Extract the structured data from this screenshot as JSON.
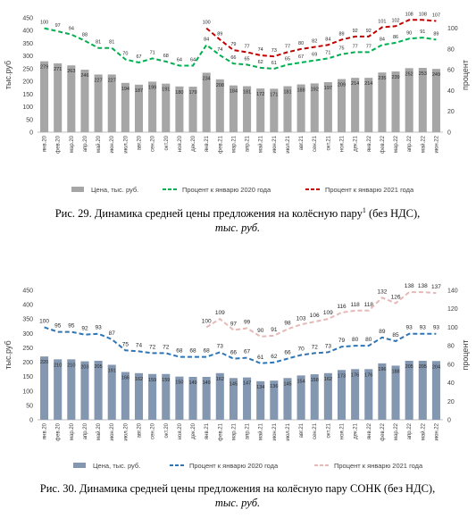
{
  "chart_data": [
    {
      "type": "bar",
      "categories": [
        "янв.20",
        "фев.20",
        "мар.20",
        "апр.20",
        "май.20",
        "июн.20",
        "июл.20",
        "авг.20",
        "сен.20",
        "окт.20",
        "ноя.20",
        "дек.20",
        "янв.21",
        "фев.21",
        "мар.21",
        "апр.21",
        "май.21",
        "июн.21",
        "июл.21",
        "авг.21",
        "сен.21",
        "окт.21",
        "ноя.21",
        "дек.21",
        "янв.22",
        "фев.22",
        "мар.22",
        "апр.22",
        "май.22",
        "июн.22"
      ],
      "ylabel": "тыс.руб",
      "y2label": "процент",
      "ylim": [
        0,
        450
      ],
      "yticks": [
        0,
        50,
        100,
        150,
        200,
        250,
        300,
        350,
        400,
        450
      ],
      "y2lim": [
        0,
        110
      ],
      "y2ticks": [
        0,
        20,
        40,
        60,
        80,
        100
      ],
      "series": [
        {
          "name": "Цена, тыс. руб.",
          "type": "bar",
          "color": "#a6a6a6",
          "values": [
            279,
            271,
            263,
            246,
            227,
            227,
            194,
            187,
            199,
            191,
            180,
            179,
            234,
            208,
            184,
            181,
            172,
            171,
            181,
            188,
            192,
            197,
            209,
            214,
            214,
            235,
            239,
            252,
            253,
            249
          ]
        },
        {
          "name": "Процент к январю 2020 года",
          "type": "line",
          "axis": "y2",
          "color": "#00b050",
          "values": [
            100,
            97,
            94,
            88,
            81,
            81,
            70,
            67,
            71,
            68,
            64,
            64,
            84,
            74,
            66,
            65,
            62,
            61,
            65,
            67,
            69,
            71,
            75,
            77,
            77,
            84,
            86,
            90,
            91,
            89
          ]
        },
        {
          "name": "Процент к январю 2021 года",
          "type": "line",
          "axis": "y2",
          "color": "#c00000",
          "values": [
            null,
            null,
            null,
            null,
            null,
            null,
            null,
            null,
            null,
            null,
            null,
            null,
            100,
            89,
            79,
            77,
            74,
            73,
            77,
            80,
            82,
            84,
            89,
            92,
            92,
            101,
            102,
            108,
            108,
            107
          ]
        }
      ],
      "caption": {
        "text": "Рис. 29. Динамика средней цены предложения на колёсную пару",
        "sup": "1",
        "tail": " (без НДС),",
        "unit": "тыс. руб."
      }
    },
    {
      "type": "bar",
      "categories": [
        "янв.20",
        "фев.20",
        "мар.20",
        "апр.20",
        "май.20",
        "июн.20",
        "июл.20",
        "авг.20",
        "сен.20",
        "окт.20",
        "ноя.20",
        "дек.20",
        "янв.21",
        "фев.21",
        "мар.21",
        "апр.21",
        "май.21",
        "июн.21",
        "июл.21",
        "авг.21",
        "сен.21",
        "окт.21",
        "ноя.21",
        "дек.21",
        "янв.22",
        "фев.22",
        "мар.22",
        "апр.22",
        "май.22",
        "июн.22"
      ],
      "ylabel": "тыс.руб",
      "y2label": "процент",
      "ylim": [
        0,
        450
      ],
      "yticks": [
        0,
        50,
        100,
        150,
        200,
        250,
        300,
        350,
        400,
        450
      ],
      "y2lim": [
        0,
        140
      ],
      "y2ticks": [
        0,
        20,
        40,
        60,
        80,
        100,
        120,
        140
      ],
      "series": [
        {
          "name": "Цена, тыс. руб.",
          "type": "bar",
          "color": "#8497b0",
          "values": [
            220,
            210,
            210,
            203,
            205,
            191,
            166,
            162,
            159,
            159,
            150,
            149,
            149,
            162,
            145,
            147,
            134,
            136,
            145,
            154,
            158,
            162,
            173,
            176,
            176,
            196,
            188,
            205,
            205,
            204
          ]
        },
        {
          "name": "Процент к январю 2020 года",
          "type": "line",
          "axis": "y2",
          "color": "#2e75b6",
          "values": [
            100,
            95,
            95,
            92,
            93,
            87,
            75,
            74,
            72,
            72,
            68,
            68,
            68,
            73,
            66,
            67,
            61,
            62,
            66,
            70,
            72,
            73,
            79,
            80,
            80,
            89,
            85,
            93,
            93,
            93
          ]
        },
        {
          "name": "Процент к январю 2021 года",
          "type": "line",
          "axis": "y2",
          "color": "#e6b8b7",
          "values": [
            null,
            null,
            null,
            null,
            null,
            null,
            null,
            null,
            null,
            null,
            null,
            null,
            100,
            109,
            97,
            99,
            90,
            91,
            98,
            103,
            106,
            109,
            116,
            118,
            118,
            132,
            126,
            138,
            138,
            137
          ]
        }
      ],
      "caption": {
        "text": "Рис. 30. Динамика средней цены предложения на колёсную пару СОНК (без НДС),",
        "unit": "тыс. руб."
      }
    }
  ]
}
